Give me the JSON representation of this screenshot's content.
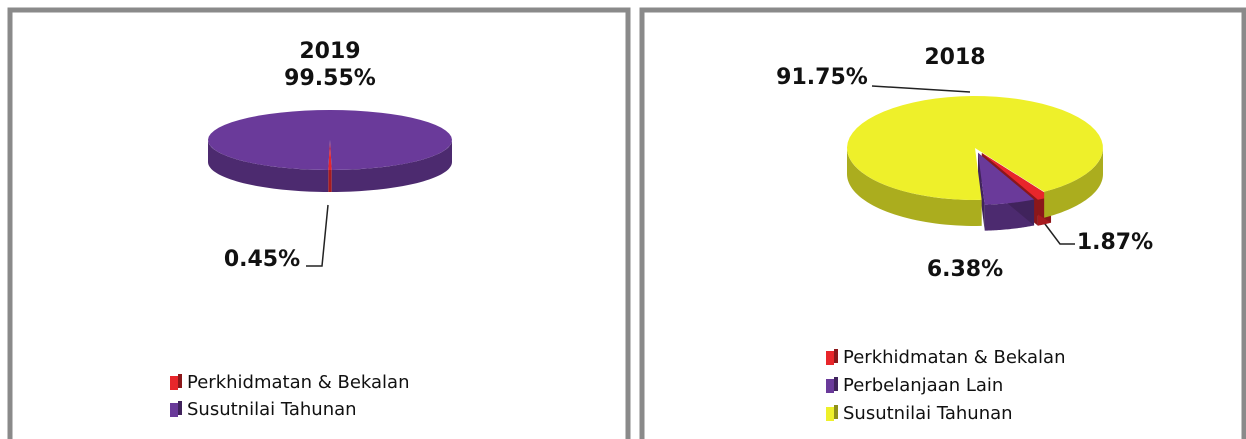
{
  "chart_data": [
    {
      "type": "pie",
      "title": "2019",
      "categories": [
        "Perkhidmatan & Bekalan",
        "Susutnilai Tahunan"
      ],
      "values": [
        0.45,
        99.55
      ],
      "value_labels": [
        "0.45%",
        "99.55%"
      ],
      "colors": [
        "#e8262b",
        "#6a3a9a"
      ]
    },
    {
      "type": "pie",
      "title": "2018",
      "categories": [
        "Perkhidmatan & Bekalan",
        "Perbelanjaan Lain",
        "Susutnilai Tahunan"
      ],
      "values": [
        1.87,
        6.38,
        91.75
      ],
      "value_labels": [
        "1.87%",
        "6.38%",
        "91.75%"
      ],
      "colors": [
        "#e8262b",
        "#6a3a9a",
        "#eef02a"
      ]
    }
  ]
}
